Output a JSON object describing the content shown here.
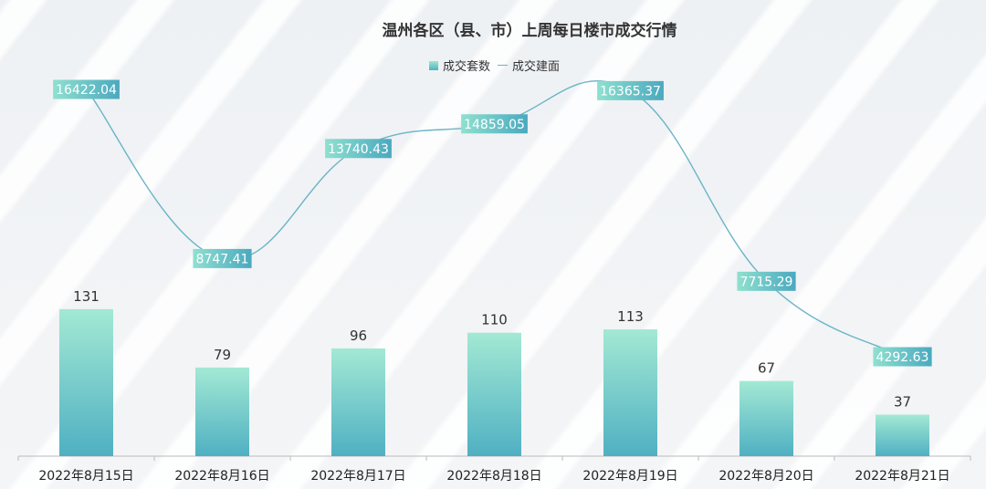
{
  "chart_data": {
    "type": "bar",
    "title": "温州各区（县、市）上周每日楼市成交行情",
    "categories": [
      "2022年8月15日",
      "2022年8月16日",
      "2022年8月17日",
      "2022年8月18日",
      "2022年8月19日",
      "2022年8月20日",
      "2022年8月21日"
    ],
    "series": [
      {
        "name": "成交套数",
        "type": "bar",
        "values": [
          131,
          79,
          96,
          110,
          113,
          67,
          37
        ]
      },
      {
        "name": "成交建面",
        "type": "line",
        "values": [
          16422.04,
          8747.41,
          13740.43,
          14859.05,
          16365.37,
          7715.29,
          4292.63
        ]
      }
    ],
    "legend_position": "top-center",
    "grid": false,
    "colors": {
      "bar_top": "#a3e9d4",
      "bar_bottom": "#4fb0c2",
      "line": "#6ab4c6",
      "label_left": "#8fe0cf",
      "label_right": "#4aa9bf"
    }
  }
}
